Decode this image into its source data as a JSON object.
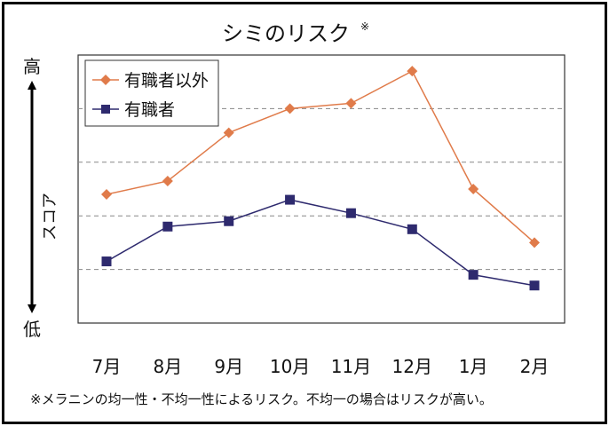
{
  "chart_data": {
    "type": "line",
    "title": "シミのリスク",
    "title_mark": "※",
    "ylabel": "スコア",
    "y_high_label": "高",
    "y_low_label": "低",
    "categories": [
      "7月",
      "8月",
      "9月",
      "10月",
      "11月",
      "12月",
      "1月",
      "2月"
    ],
    "ylim": [
      0,
      100
    ],
    "y_gridlines": [
      20,
      40,
      60,
      80
    ],
    "grid": true,
    "legend_position": "top-left",
    "series": [
      {
        "name": "有職者以外",
        "color": "#E07B4A",
        "marker": "diamond",
        "values": [
          48,
          53,
          71,
          80,
          82,
          94,
          50,
          30
        ]
      },
      {
        "name": "有職者",
        "color": "#2E2A6E",
        "marker": "square",
        "values": [
          23,
          36,
          38,
          46,
          41,
          35,
          18,
          14
        ]
      }
    ],
    "footnote": "※メラニンの均一性・不均一性によるリスク。不均一の場合はリスクが高い。"
  }
}
